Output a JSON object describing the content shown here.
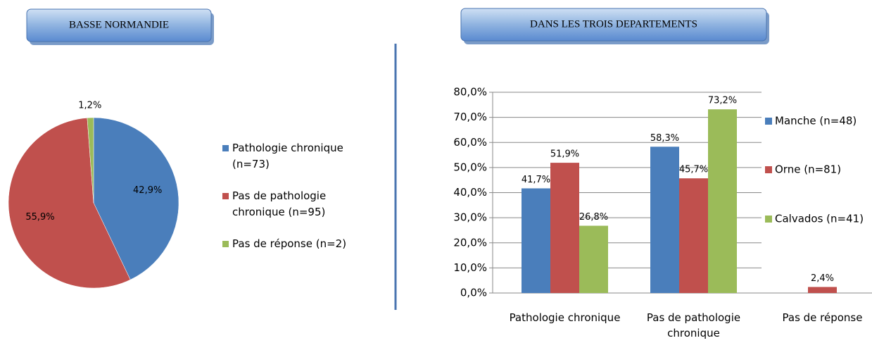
{
  "chart_data": [
    {
      "type": "pie",
      "title": "BASSE NORMANDIE",
      "categories": [
        "Pathologie chronique (n=73)",
        "Pas de pathologie chronique (n=95)",
        "Pas de réponse (n=2)"
      ],
      "values": [
        42.9,
        55.9,
        1.2
      ],
      "value_labels": [
        "42,9%",
        "55,9%",
        "1,2%"
      ],
      "colors": [
        "#4a7ebb",
        "#c0504d",
        "#9bbb59"
      ]
    },
    {
      "type": "bar",
      "title": "DANS LES TROIS DEPARTEMENTS",
      "categories": [
        "Pathologie chronique",
        "Pas de pathologie chronique",
        "Pas de réponse"
      ],
      "series": [
        {
          "name": "Manche (n=48)",
          "color": "#4a7ebb",
          "values": [
            41.7,
            58.3,
            null
          ],
          "value_labels": [
            "41,7%",
            "58,3%",
            null
          ]
        },
        {
          "name": "Orne (n=81)",
          "color": "#c0504d",
          "values": [
            51.9,
            45.7,
            2.4
          ],
          "value_labels": [
            "51,9%",
            "45,7%",
            "2,4%"
          ]
        },
        {
          "name": "Calvados (n=41)",
          "color": "#9bbb59",
          "values": [
            26.8,
            73.2,
            null
          ],
          "value_labels": [
            "26,8%",
            "73,2%",
            null
          ]
        }
      ],
      "ylim": [
        0,
        80
      ],
      "yticks": [
        {
          "value": 0,
          "label": "0,0%"
        },
        {
          "value": 10,
          "label": "10,0%"
        },
        {
          "value": 20,
          "label": "20,0%"
        },
        {
          "value": 30,
          "label": "30,0%"
        },
        {
          "value": 40,
          "label": "40,0%"
        },
        {
          "value": 50,
          "label": "50,0%"
        },
        {
          "value": 60,
          "label": "60,0%"
        },
        {
          "value": 70,
          "label": "70,0%"
        },
        {
          "value": 80,
          "label": "80,0%"
        }
      ],
      "grid": true,
      "legend": "right"
    }
  ]
}
